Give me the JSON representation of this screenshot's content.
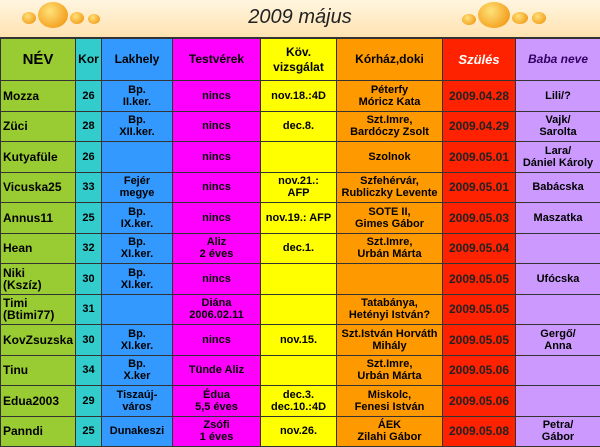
{
  "title": "2009 május",
  "table": {
    "header": [
      "NÉV",
      "Kor",
      "Lakhely",
      "Testvérek",
      "Köv.\nvizsgálat",
      "Kórház,doki",
      "Szülés",
      "Baba neve"
    ],
    "rows": [
      [
        "Mozza",
        "26",
        "Bp.\nII.ker.",
        "nincs",
        "nov.18.:4D",
        "Péterfy\nMóricz Kata",
        "2009.04.28",
        "Lili/?"
      ],
      [
        "Züci",
        "28",
        "Bp.\nXII.ker.",
        "nincs",
        "dec.8.",
        "Szt.Imre,\nBardóczy Zsolt",
        "2009.04.29",
        "Vajk/\nSarolta"
      ],
      [
        "Kutyafüle",
        "26",
        null,
        "nincs",
        null,
        "Szolnok",
        "2009.05.01",
        "Lara/\nDániel Károly"
      ],
      [
        "Vicuska25",
        "33",
        "Fejér\nmegye",
        "nincs",
        "nov.21.:\nAFP",
        "Szfehérvár,\nRubliczky Levente",
        "2009.05.01",
        "Babácska"
      ],
      [
        "Annus11",
        "25",
        "Bp.\nIX.ker.",
        "nincs",
        "nov.19.: AFP",
        "SOTE II,\nGimes Gábor",
        "2009.05.03",
        "Maszatka"
      ],
      [
        "Hean",
        "32",
        "Bp.\nXI.ker.",
        "Aliz\n2 éves",
        "dec.1.",
        "Szt.Imre,\nUrbán Márta",
        "2009.05.04",
        null
      ],
      [
        "Niki\n(Kszíz)",
        "30",
        "Bp.\nXI.ker.",
        "nincs",
        null,
        null,
        "2009.05.05",
        "Ufócska"
      ],
      [
        "Timi\n(Btimi77)",
        "31",
        null,
        "Diána\n2006.02.11",
        null,
        "Tatabánya,\nHetényi István?",
        "2009.05.05",
        null
      ],
      [
        "KovZsuzska",
        "30",
        "Bp.\nXI.ker.",
        "nincs",
        "nov.15.",
        "Szt.István Horváth\nMihály",
        "2009.05.05",
        "Gergő/\nAnna"
      ],
      [
        "Tinu",
        "34",
        "Bp.\nX.ker",
        "Tünde Aliz",
        null,
        "Szt.Imre,\nUrbán Márta",
        "2009.05.06",
        null
      ],
      [
        "Edua2003",
        "29",
        "Tiszaúj-\nváros",
        "Édua\n5,5 éves",
        "dec.3.\ndec.10.:4D",
        "Miskolc,\nFenesi István",
        "2009.05.06",
        null
      ],
      [
        "Panndi",
        "25",
        "Dunakeszi",
        "Zsófi\n1 éves",
        "nov.26.",
        "ÁEK\nZilahi Gábor",
        "2009.05.08",
        "Petra/\nGábor"
      ]
    ]
  }
}
